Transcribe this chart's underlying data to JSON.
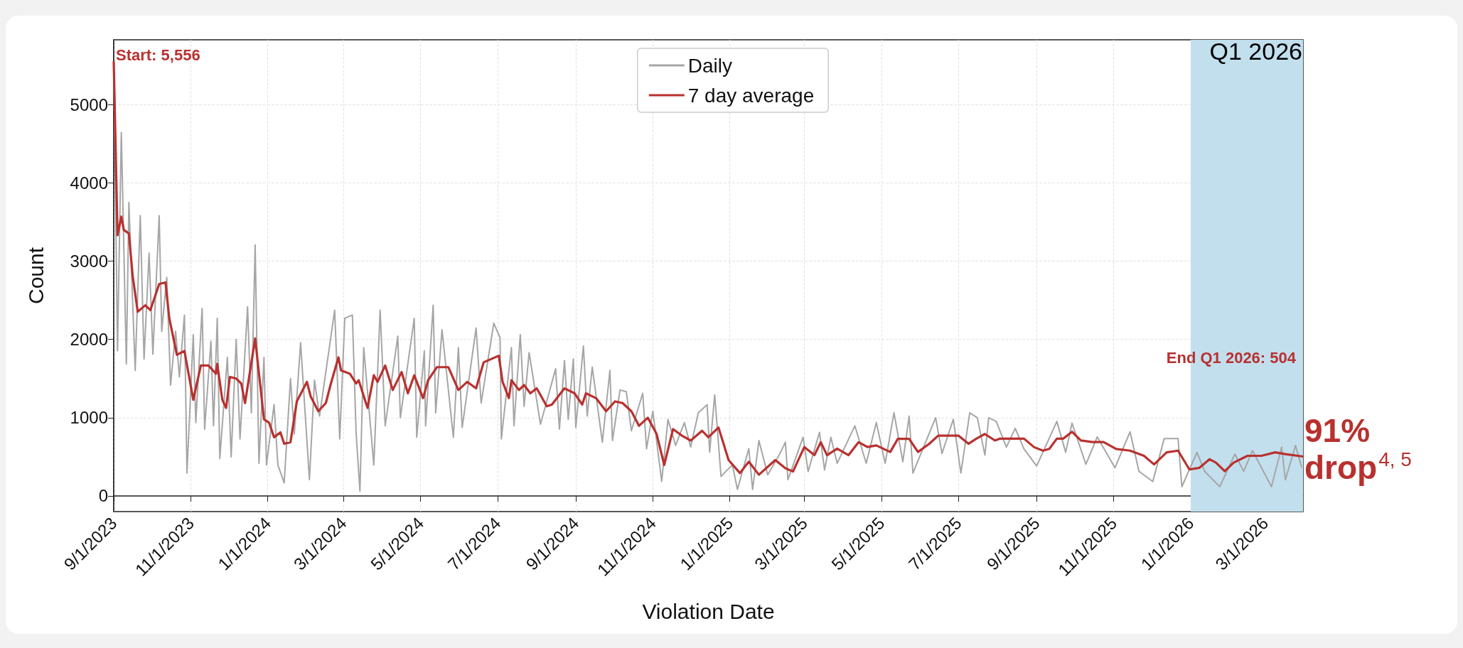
{
  "chart_data": {
    "type": "line",
    "xlabel": "Violation Date",
    "ylabel": "Count",
    "xlim": [
      "2023-09-01",
      "2026-03-31"
    ],
    "xticks": [
      {
        "value": "2023-09-01",
        "label": "9/1/2023"
      },
      {
        "value": "2023-11-01",
        "label": "11/1/2023"
      },
      {
        "value": "2024-01-01",
        "label": "1/1/2024"
      },
      {
        "value": "2024-03-01",
        "label": "3/1/2024"
      },
      {
        "value": "2024-05-01",
        "label": "5/1/2024"
      },
      {
        "value": "2024-07-01",
        "label": "7/1/2024"
      },
      {
        "value": "2024-09-01",
        "label": "9/1/2024"
      },
      {
        "value": "2024-11-01",
        "label": "11/1/2024"
      },
      {
        "value": "2025-01-01",
        "label": "1/1/2025"
      },
      {
        "value": "2025-03-01",
        "label": "3/1/2025"
      },
      {
        "value": "2025-05-01",
        "label": "5/1/2025"
      },
      {
        "value": "2025-07-01",
        "label": "7/1/2025"
      },
      {
        "value": "2025-09-01",
        "label": "9/1/2025"
      },
      {
        "value": "2025-11-01",
        "label": "11/1/2025"
      },
      {
        "value": "2026-01-01",
        "label": "1/1/2026"
      },
      {
        "value": "2026-03-01",
        "label": "3/1/2026"
      }
    ],
    "ylim": [
      -200,
      5830
    ],
    "yticks": [
      0,
      1000,
      2000,
      3000,
      4000,
      5000
    ],
    "grid": true,
    "legend": "top",
    "bands": [
      {
        "axis": "x",
        "from": "2026-01-01",
        "to": "2026-03-31",
        "label": "Q1 2026",
        "color": "#c2dfee"
      }
    ],
    "annotations": [
      {
        "text": "Start: 5,556",
        "x": "2023-09-01",
        "y": 5556
      },
      "End Q1 2026: 504",
      "91% drop$^{4, 5}$"
    ],
    "series": [
      {
        "name": "Daily",
        "color": "#a6a6a6",
        "x": [
          "2023-09-01",
          "2023-09-04",
          "2023-09-07",
          "2023-09-11",
          "2023-09-13",
          "2023-09-18",
          "2023-09-22",
          "2023-09-25",
          "2023-09-29",
          "2023-10-02",
          "2023-10-07",
          "2023-10-09",
          "2023-10-13",
          "2023-10-16",
          "2023-10-20",
          "2023-10-23",
          "2023-10-27",
          "2023-10-29",
          "2023-11-03",
          "2023-11-05",
          "2023-11-10",
          "2023-11-12",
          "2023-11-17",
          "2023-11-19",
          "2023-11-22",
          "2023-11-24",
          "2023-11-30",
          "2023-12-03",
          "2023-12-07",
          "2023-12-10",
          "2023-12-16",
          "2023-12-19",
          "2023-12-22",
          "2023-12-25",
          "2023-12-29",
          "2023-12-31",
          "2024-01-06",
          "2024-01-09",
          "2024-01-14",
          "2024-01-19",
          "2024-01-22",
          "2024-01-27",
          "2024-02-03",
          "2024-02-07",
          "2024-02-11",
          "2024-02-23",
          "2024-02-27",
          "2024-03-02",
          "2024-03-08",
          "2024-03-11",
          "2024-03-14",
          "2024-03-17",
          "2024-03-25",
          "2024-03-30",
          "2024-04-03",
          "2024-04-13",
          "2024-04-15",
          "2024-04-26",
          "2024-04-28",
          "2024-05-04",
          "2024-05-05",
          "2024-05-11",
          "2024-05-13",
          "2024-05-18",
          "2024-05-27",
          "2024-05-31",
          "2024-06-03",
          "2024-06-14",
          "2024-06-18",
          "2024-06-28",
          "2024-07-03",
          "2024-07-04",
          "2024-07-12",
          "2024-07-14",
          "2024-07-19",
          "2024-07-22",
          "2024-07-26",
          "2024-08-04",
          "2024-08-16",
          "2024-08-19",
          "2024-08-23",
          "2024-08-26",
          "2024-08-30",
          "2024-09-01",
          "2024-09-07",
          "2024-09-10",
          "2024-09-14",
          "2024-09-22",
          "2024-09-28",
          "2024-09-30",
          "2024-10-06",
          "2024-10-11",
          "2024-10-15",
          "2024-10-24",
          "2024-10-27",
          "2024-11-01",
          "2024-11-08",
          "2024-11-13",
          "2024-11-19",
          "2024-11-26",
          "2024-12-01",
          "2024-12-07",
          "2024-12-14",
          "2024-12-16",
          "2024-12-20",
          "2024-12-25",
          "2025-01-03",
          "2025-01-07",
          "2025-01-16",
          "2025-01-19",
          "2025-01-24",
          "2025-01-31",
          "2025-02-09",
          "2025-02-14",
          "2025-02-16",
          "2025-02-28",
          "2025-03-04",
          "2025-03-13",
          "2025-03-17",
          "2025-03-22",
          "2025-03-27",
          "2025-04-10",
          "2025-04-19",
          "2025-04-27",
          "2025-05-04",
          "2025-05-11",
          "2025-05-18",
          "2025-05-23",
          "2025-05-26",
          "2025-06-13",
          "2025-06-18",
          "2025-06-27",
          "2025-07-03",
          "2025-07-10",
          "2025-07-16",
          "2025-07-22",
          "2025-07-25",
          "2025-07-31",
          "2025-08-08",
          "2025-08-15",
          "2025-08-22",
          "2025-09-01",
          "2025-09-17",
          "2025-09-24",
          "2025-09-29",
          "2025-10-10",
          "2025-10-19",
          "2025-11-02",
          "2025-11-14",
          "2025-11-21",
          "2025-12-02",
          "2025-12-11",
          "2025-12-22",
          "2025-12-25",
          "2026-01-06",
          "2026-01-12",
          "2026-01-24",
          "2026-02-05",
          "2026-02-12",
          "2026-02-19",
          "2026-03-06",
          "2026-03-14",
          "2026-03-17",
          "2026-03-25",
          "2026-03-30"
        ],
        "values": [
          5556,
          1854,
          4646,
          1687,
          3750,
          1604,
          3583,
          1750,
          3104,
          1812,
          3583,
          2104,
          2792,
          1417,
          2104,
          1521,
          2312,
          292,
          2062,
          937,
          2396,
          854,
          1979,
          896,
          2271,
          479,
          1771,
          500,
          2000,
          729,
          2417,
          1062,
          3208,
          417,
          1771,
          396,
          1167,
          396,
          167,
          1500,
          792,
          1958,
          208,
          1479,
          1021,
          2375,
          729,
          2271,
          2312,
          792,
          62,
          1896,
          396,
          2375,
          896,
          2042,
          1000,
          2271,
          750,
          1854,
          896,
          2437,
          1062,
          2125,
          750,
          1896,
          875,
          2146,
          1187,
          2208,
          2021,
          729,
          1896,
          896,
          2062,
          1146,
          1833,
          917,
          1625,
          854,
          1729,
          979,
          1750,
          875,
          1917,
          1021,
          1646,
          687,
          1604,
          708,
          1354,
          1333,
          833,
          1312,
          604,
          1083,
          187,
          979,
          646,
          937,
          625,
          1062,
          1167,
          562,
          1292,
          250,
          396,
          83,
          604,
          83,
          708,
          271,
          521,
          687,
          208,
          750,
          312,
          812,
          333,
          750,
          417,
          896,
          417,
          937,
          417,
          1062,
          437,
          1021,
          292,
          1000,
          542,
          979,
          292,
          1062,
          1000,
          521,
          1000,
          952,
          623,
          864,
          601,
          382,
          952,
          557,
          930,
          404,
          754,
          360,
          820,
          316,
          184,
          732,
          732,
          118,
          557,
          316,
          118,
          535,
          316,
          579,
          118,
          623,
          206,
          645,
          360
        ]
      },
      {
        "name": "7 day average",
        "color": "#b8312f",
        "x": [
          "2023-09-01",
          "2023-09-04",
          "2023-09-07",
          "2023-09-09",
          "2023-09-13",
          "2023-09-16",
          "2023-09-20",
          "2023-09-26",
          "2023-09-30",
          "2023-10-07",
          "2023-10-12",
          "2023-10-15",
          "2023-10-21",
          "2023-10-27",
          "2023-11-03",
          "2023-11-09",
          "2023-11-15",
          "2023-11-21",
          "2023-11-22",
          "2023-11-26",
          "2023-11-29",
          "2023-12-02",
          "2023-12-07",
          "2023-12-11",
          "2023-12-14",
          "2023-12-22",
          "2023-12-29",
          "2024-01-02",
          "2024-01-06",
          "2024-01-11",
          "2024-01-14",
          "2024-01-19",
          "2024-01-24",
          "2024-02-01",
          "2024-02-04",
          "2024-02-10",
          "2024-02-16",
          "2024-02-20",
          "2024-02-26",
          "2024-02-28",
          "2024-03-06",
          "2024-03-11",
          "2024-03-13",
          "2024-03-20",
          "2024-03-25",
          "2024-03-28",
          "2024-04-03",
          "2024-04-09",
          "2024-04-16",
          "2024-04-21",
          "2024-04-26",
          "2024-05-03",
          "2024-05-07",
          "2024-05-14",
          "2024-05-23",
          "2024-05-31",
          "2024-06-07",
          "2024-06-14",
          "2024-06-20",
          "2024-07-02",
          "2024-07-05",
          "2024-07-10",
          "2024-07-12",
          "2024-07-18",
          "2024-07-22",
          "2024-07-27",
          "2024-08-01",
          "2024-08-09",
          "2024-08-13",
          "2024-08-23",
          "2024-08-31",
          "2024-09-06",
          "2024-09-09",
          "2024-09-17",
          "2024-09-25",
          "2024-10-02",
          "2024-10-08",
          "2024-10-15",
          "2024-10-21",
          "2024-10-28",
          "2024-11-04",
          "2024-11-10",
          "2024-11-17",
          "2024-11-24",
          "2024-12-01",
          "2024-12-10",
          "2024-12-15",
          "2024-12-23",
          "2024-12-31",
          "2025-01-09",
          "2025-01-16",
          "2025-01-24",
          "2025-02-06",
          "2025-02-14",
          "2025-02-20",
          "2025-03-01",
          "2025-03-09",
          "2025-03-14",
          "2025-03-19",
          "2025-03-27",
          "2025-04-05",
          "2025-04-13",
          "2025-04-20",
          "2025-04-27",
          "2025-05-08",
          "2025-05-14",
          "2025-05-23",
          "2025-05-30",
          "2025-06-08",
          "2025-06-15",
          "2025-07-01",
          "2025-07-09",
          "2025-07-15",
          "2025-07-22",
          "2025-07-30",
          "2025-08-03",
          "2025-08-22",
          "2025-08-30",
          "2025-09-06",
          "2025-09-11",
          "2025-09-17",
          "2025-09-22",
          "2025-09-29",
          "2025-10-06",
          "2025-10-15",
          "2025-10-24",
          "2025-11-03",
          "2025-11-14",
          "2025-11-25",
          "2025-12-03",
          "2025-12-13",
          "2025-12-22",
          "2025-12-31",
          "2026-01-08",
          "2026-01-16",
          "2026-01-21",
          "2026-01-28",
          "2026-02-04",
          "2026-02-15",
          "2026-02-26",
          "2026-03-09",
          "2026-03-17",
          "2026-03-31"
        ],
        "values": [
          5556,
          3333,
          3570,
          3400,
          3354,
          2810,
          2354,
          2437,
          2375,
          2708,
          2729,
          2271,
          1804,
          1854,
          1229,
          1667,
          1667,
          1562,
          1687,
          1229,
          1125,
          1521,
          1500,
          1437,
          1187,
          2012,
          979,
          937,
          750,
          812,
          667,
          687,
          1208,
          1458,
          1271,
          1083,
          1187,
          1437,
          1771,
          1604,
          1562,
          1437,
          1479,
          1125,
          1542,
          1458,
          1667,
          1354,
          1583,
          1312,
          1542,
          1250,
          1479,
          1646,
          1646,
          1354,
          1458,
          1375,
          1708,
          1792,
          1458,
          1250,
          1479,
          1354,
          1417,
          1312,
          1375,
          1146,
          1167,
          1375,
          1312,
          1167,
          1312,
          1250,
          1083,
          1208,
          1187,
          1083,
          896,
          1000,
          792,
          396,
          854,
          771,
          708,
          833,
          750,
          875,
          458,
          292,
          437,
          271,
          458,
          354,
          312,
          625,
          521,
          687,
          521,
          604,
          521,
          687,
          625,
          646,
          562,
          729,
          729,
          562,
          667,
          771,
          771,
          667,
          729,
          792,
          708,
          732,
          732,
          623,
          579,
          601,
          732,
          732,
          820,
          710,
          689,
          689,
          601,
          579,
          513,
          403,
          557,
          579,
          338,
          360,
          469,
          425,
          316,
          425,
          513,
          513,
          557,
          535,
          504
        ]
      }
    ]
  }
}
